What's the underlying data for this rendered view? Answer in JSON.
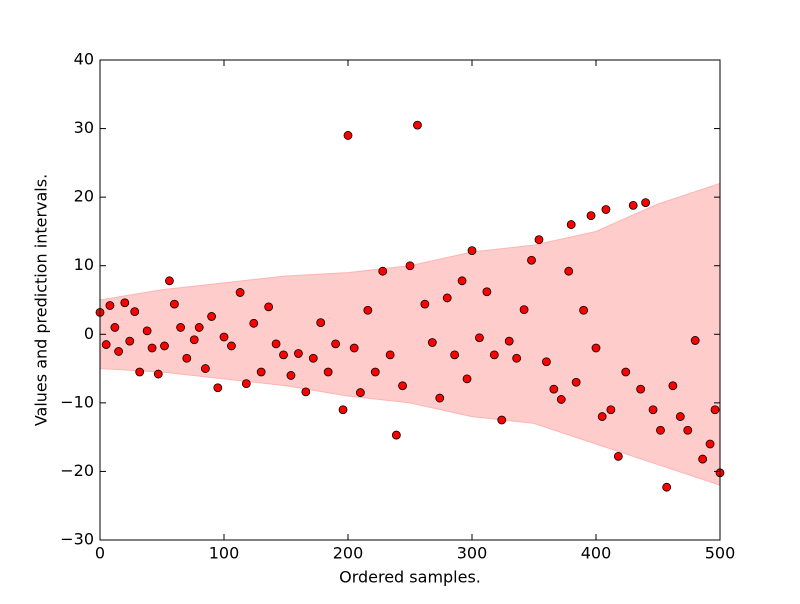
{
  "chart_data": {
    "type": "scatter",
    "xlabel": "Ordered samples.",
    "ylabel": "Values and prediction intervals.",
    "x": [
      0,
      5,
      8,
      12,
      15,
      20,
      24,
      28,
      32,
      38,
      42,
      47,
      52,
      56,
      60,
      65,
      70,
      76,
      80,
      85,
      90,
      95,
      100,
      106,
      113,
      118,
      124,
      130,
      136,
      142,
      148,
      154,
      160,
      166,
      172,
      178,
      184,
      190,
      196,
      200,
      205,
      210,
      216,
      222,
      228,
      234,
      239,
      244,
      250,
      256,
      262,
      268,
      274,
      280,
      286,
      292,
      296,
      300,
      306,
      312,
      318,
      324,
      330,
      336,
      342,
      348,
      354,
      360,
      366,
      372,
      378,
      380,
      384,
      390,
      396,
      400,
      405,
      408,
      412,
      418,
      424,
      430,
      436,
      440,
      446,
      452,
      457,
      462,
      468,
      474,
      480,
      486,
      492,
      496,
      500
    ],
    "values": [
      3.2,
      -1.5,
      4.2,
      1.0,
      -2.5,
      4.6,
      -1,
      3.3,
      -5.5,
      0.5,
      -2,
      -5.8,
      -1.7,
      7.8,
      4.4,
      1.0,
      -3.5,
      -0.8,
      1.0,
      -5,
      2.6,
      -7.8,
      -0.4,
      -1.7,
      6.1,
      -7.2,
      1.6,
      -5.5,
      4.0,
      -1.4,
      -3,
      -6,
      -2.8,
      -8.4,
      -3.5,
      1.7,
      -5.5,
      -1.4,
      -11,
      29,
      -2,
      -8.5,
      3.5,
      -5.5,
      9.2,
      -3,
      -14.7,
      -7.5,
      10,
      30.5,
      4.4,
      -1.2,
      -9.3,
      5.3,
      -3,
      7.8,
      -6.5,
      12.2,
      -0.5,
      6.2,
      -3,
      -12.5,
      -1,
      -3.5,
      3.6,
      10.8,
      13.8,
      -4,
      -8,
      -9.5,
      9.2,
      16,
      -7,
      3.5,
      17.3,
      -2,
      -12,
      18.2,
      -11,
      -17.8,
      -5.5,
      18.8,
      -8,
      19.2,
      -11,
      -14,
      -22.3,
      -7.5,
      -12,
      -14,
      -0.9,
      -18.2,
      -16,
      -11,
      -20.2
    ],
    "color": "#ff0000",
    "interval": {
      "x": [
        0,
        50,
        100,
        150,
        200,
        250,
        300,
        350,
        400,
        450,
        500
      ],
      "upper": [
        5,
        6.5,
        7.5,
        8.5,
        9,
        10,
        12,
        13,
        15,
        19,
        22
      ],
      "lower": [
        -5,
        -5.5,
        -6.5,
        -7.5,
        -9,
        -10,
        -12,
        -13,
        -16,
        -19,
        -22
      ],
      "color": "#ffcccc"
    },
    "xlim": [
      0,
      500
    ],
    "xticks": [
      0,
      100,
      200,
      300,
      400,
      500
    ],
    "ylim": [
      -30,
      40
    ],
    "yticks": [
      {
        "value": -30,
        "label": "−30"
      },
      {
        "value": -20,
        "label": "−20"
      },
      {
        "value": -10,
        "label": "−10"
      },
      0,
      10,
      20,
      30,
      40
    ]
  }
}
